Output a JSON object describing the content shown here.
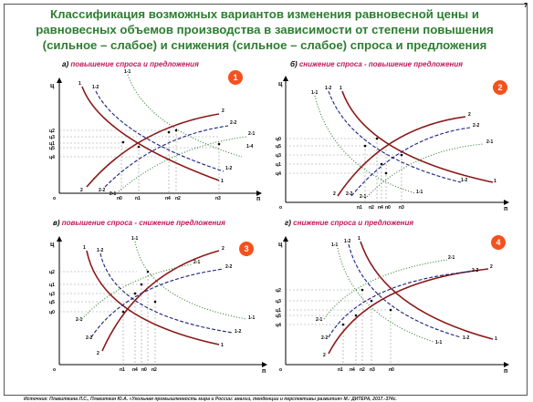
{
  "page_number": "7",
  "title_lines": [
    "Классификация возможных вариантов изменения равновесной цены и",
    "равновесных объемов производства в зависимости от степени повышения",
    "(сильное – слабое) и снижения (сильное – слабое) спроса и предложения"
  ],
  "panels": [
    {
      "letter": "а)",
      "caption": "повышение спроса и предложения",
      "number": "1",
      "y_axis": "ц",
      "x_axis": "п",
      "origin": "о",
      "price_ticks": [
        "ц2",
        "ц3",
        "ц1",
        "ц5",
        "ц4"
      ],
      "qty_ticks": [
        "п0",
        "п1",
        "п4",
        "п2",
        "п3"
      ],
      "curve_labels": [
        "1",
        "1-2",
        "1-1",
        "2",
        "2-2",
        "2-1",
        "1-4"
      ]
    },
    {
      "letter": "б)",
      "caption": "снижение спроса - повышение предложения",
      "number": "2",
      "y_axis": "ц",
      "x_axis": "п",
      "origin": "о",
      "price_ticks": [
        "ц0",
        "ц5",
        "ц3",
        "ц1",
        "ц4"
      ],
      "qty_ticks": [
        "п1",
        "п2",
        "п4",
        "п0",
        "п3"
      ],
      "curve_labels": [
        "1",
        "1-2",
        "1-1",
        "2",
        "2-2",
        "2-1"
      ]
    },
    {
      "letter": "в)",
      "caption": "повышение спроса - снижение предложения",
      "number": "3",
      "y_axis": "ц",
      "x_axis": "п",
      "origin": "о",
      "price_ticks": [
        "ц2",
        "ц1",
        "ц3",
        "ц5",
        "ц0"
      ],
      "qty_ticks": [
        "п1",
        "п4",
        "п0",
        "п2"
      ],
      "curve_labels": [
        "1",
        "1-2",
        "1-1",
        "2",
        "2-2",
        "2-1"
      ]
    },
    {
      "letter": "г)",
      "caption": "снижение спроса и предложения",
      "number": "4",
      "y_axis": "ц",
      "x_axis": "п",
      "origin": "о",
      "price_ticks": [
        "ц2",
        "ц3",
        "ц1",
        "ц5",
        "ц4"
      ],
      "qty_ticks": [
        "п1",
        "п4",
        "п2",
        "п3",
        "п0"
      ],
      "curve_labels": [
        "1",
        "1-2",
        "1-1",
        "2",
        "2-2",
        "2-1"
      ]
    }
  ],
  "source": "Источник: Плакиткина Л.С., Плакиткин Ю.А. «Угольная промышленность мира и России: анализ, тенденции и перспективы развития» М.: ДИТЕРА, 2017.-374с.",
  "colors": {
    "title": "#2e7d32",
    "caption": "#c2185b",
    "badge": "#f4511e",
    "curve_main": "#8b1a1a",
    "curve_dash": "#1a237e",
    "curve_dot": "#2e7d32"
  }
}
